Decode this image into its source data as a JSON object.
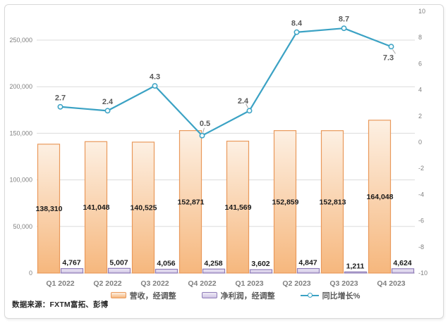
{
  "source_note": "数据来源：FXTM富拓、彭博",
  "chart_data": {
    "type": "combo",
    "title": "",
    "categories": [
      "Q1 2022",
      "Q2 2022",
      "Q3 2022",
      "Q4 2022",
      "Q1 2023",
      "Q2 2023",
      "Q3 2023",
      "Q4 2023"
    ],
    "series": [
      {
        "name": "营收，经调整",
        "type": "bar",
        "axis": "left",
        "values": [
          138310,
          141048,
          140525,
          152871,
          141569,
          152859,
          152813,
          164048
        ],
        "labels": [
          "138,310",
          "141,048",
          "140,525",
          "152,871",
          "141,569",
          "152,859",
          "152,813",
          "164,048"
        ]
      },
      {
        "name": "净利润，经调整",
        "type": "bar",
        "axis": "left",
        "values": [
          4767,
          5007,
          4056,
          4258,
          3602,
          4847,
          1211,
          4624
        ],
        "labels": [
          "4,767",
          "5,007",
          "4,056",
          "4,258",
          "3,602",
          "4,847",
          "1,211",
          "4,624"
        ]
      },
      {
        "name": "同比增长%",
        "type": "line",
        "axis": "right",
        "values": [
          2.7,
          2.4,
          4.3,
          0.5,
          2.4,
          8.4,
          8.7,
          7.3
        ],
        "labels": [
          "2.7",
          "2.4",
          "4.3",
          "0.5",
          "2.4",
          "8.4",
          "8.7",
          "7.3"
        ]
      }
    ],
    "left_axis": {
      "min": 0,
      "max": 250000,
      "step": 50000,
      "tick_labels": [
        "0",
        "50,000",
        "100,000",
        "150,000",
        "200,000",
        "250,000"
      ]
    },
    "right_axis": {
      "min": -10,
      "max": 10,
      "step": 2,
      "tick_labels": [
        "-10",
        "-8",
        "-6",
        "-4",
        "-2",
        "0",
        "2",
        "4",
        "6",
        "8",
        "10"
      ]
    },
    "legend": {
      "position": "bottom",
      "entries": [
        "营收，经调整",
        "净利润，经调整",
        "同比增长%"
      ]
    },
    "grid": "horizontal-left-axis",
    "colors": {
      "revenue_border": "#E9995B",
      "revenue_fill_top": "#FDF0E3",
      "revenue_fill_bottom": "#F6B77D",
      "profit_border": "#8F7CB8",
      "profit_fill_top": "#EFEBF6",
      "profit_fill_bottom": "#CFC4E4",
      "growth_line": "#3BA2C4",
      "marker_fill": "#F4FBFD",
      "grid_line": "#DCDCDC",
      "zero_line": "#C9C9C9",
      "axis_text": "#808080",
      "category_text": "#7F7F7F",
      "bar_label": "#1A1A1A",
      "growth_label": "#595959",
      "leader": "#A6A6A6"
    },
    "growth_label_layout": {
      "default": [
        0,
        -13
      ],
      "custom": {
        "3": [
          4,
          -17
        ],
        "4": [
          -9,
          -14
        ],
        "7": [
          -4,
          16
        ]
      },
      "leaders": {
        "3": [
          1,
          -4,
          3,
          -11
        ],
        "4": [
          -2,
          -4,
          -5,
          -10
        ],
        "7": [
          2,
          4,
          6,
          10
        ]
      }
    }
  }
}
